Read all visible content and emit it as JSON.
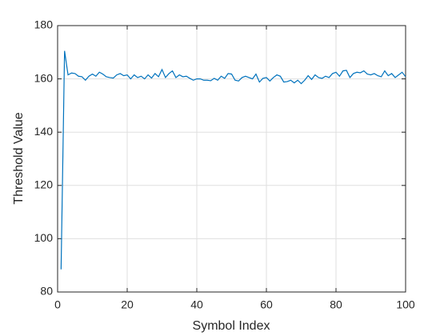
{
  "chart_data": {
    "type": "line",
    "xlabel": "Symbol Index",
    "ylabel": "Threshold Value",
    "x": [
      1,
      2,
      3,
      4,
      5,
      6,
      7,
      8,
      9,
      10,
      11,
      12,
      13,
      14,
      15,
      16,
      17,
      18,
      19,
      20,
      21,
      22,
      23,
      24,
      25,
      26,
      27,
      28,
      29,
      30,
      31,
      32,
      33,
      34,
      35,
      36,
      37,
      38,
      39,
      40,
      41,
      42,
      43,
      44,
      45,
      46,
      47,
      48,
      49,
      50,
      51,
      52,
      53,
      54,
      55,
      56,
      57,
      58,
      59,
      60,
      61,
      62,
      63,
      64,
      65,
      66,
      67,
      68,
      69,
      70,
      71,
      72,
      73,
      74,
      75,
      76,
      77,
      78,
      79,
      80,
      81,
      82,
      83,
      84,
      85,
      86,
      87,
      88,
      89,
      90,
      91,
      92,
      93,
      94,
      95,
      96,
      97,
      98,
      99,
      100
    ],
    "values": [
      88.5,
      170.5,
      161.5,
      162.2,
      162,
      161,
      160.8,
      159.5,
      161,
      161.8,
      161,
      162.5,
      161.8,
      160.8,
      160.5,
      160.3,
      161.5,
      162,
      161.2,
      161.5,
      160,
      161.5,
      160.5,
      161,
      160,
      161.5,
      160.3,
      162,
      160.8,
      163.5,
      160.5,
      162,
      163,
      160.5,
      161.5,
      160.8,
      161,
      160.2,
      159.5,
      160,
      160,
      159.5,
      159.5,
      159.3,
      160.2,
      159.5,
      161,
      160.2,
      162,
      161.8,
      159.5,
      159.2,
      160.5,
      161,
      160.5,
      160,
      161.8,
      158.8,
      160.2,
      160.5,
      159.2,
      160.5,
      161.5,
      161,
      158.8,
      159,
      159.5,
      158.5,
      159.5,
      158.2,
      159.5,
      161.2,
      159.8,
      161.5,
      160.5,
      160.2,
      161,
      160.5,
      162,
      162.5,
      161,
      163,
      163.2,
      160.5,
      162,
      162.5,
      162.3,
      163,
      161.8,
      161.5,
      162,
      161.2,
      160.8,
      163,
      161.2,
      162,
      160.5,
      161.5,
      162.5,
      160.8
    ],
    "color": "#0072bd",
    "xlim": [
      0,
      100
    ],
    "xticks": [
      0,
      20,
      40,
      60,
      80,
      100
    ],
    "ylim": [
      80,
      180
    ],
    "yticks": [
      80,
      100,
      120,
      140,
      160,
      180
    ],
    "grid": true
  }
}
